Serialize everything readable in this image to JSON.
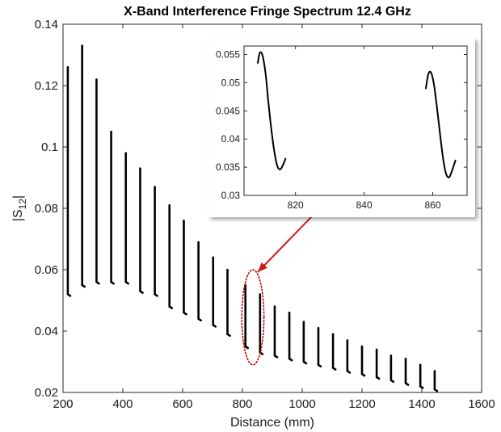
{
  "chart_data": [
    {
      "type": "line",
      "title": "X-Band Interference Fringe Spectrum 12.4 GHz",
      "xlabel": "Distance (mm)",
      "ylabel": {
        "main": "|S",
        "subscript": "12",
        "close": "|"
      },
      "xlim": [
        200,
        1600
      ],
      "ylim": [
        0.02,
        0.14
      ],
      "xticks": [
        200,
        400,
        600,
        800,
        1000,
        1200,
        1400,
        1600
      ],
      "yticks": [
        0.02,
        0.04,
        0.06,
        0.08,
        0.1,
        0.12,
        0.14
      ],
      "xtick_labels": [
        "200",
        "400",
        "600",
        "800",
        "1000",
        "1200",
        "1400",
        "1600"
      ],
      "ytick_labels": [
        "0.02",
        "0.04",
        "0.06",
        "0.08",
        "0.1",
        "0.12",
        "0.14"
      ],
      "grid": false,
      "series_color": "#000000",
      "fringe_segments": [
        {
          "x": 216,
          "y_max": 0.126,
          "y_min": 0.052
        },
        {
          "x": 264,
          "y_max": 0.133,
          "y_min": 0.055
        },
        {
          "x": 312,
          "y_max": 0.122,
          "y_min": 0.056
        },
        {
          "x": 361,
          "y_max": 0.105,
          "y_min": 0.056
        },
        {
          "x": 410,
          "y_max": 0.098,
          "y_min": 0.056
        },
        {
          "x": 458,
          "y_max": 0.093,
          "y_min": 0.053
        },
        {
          "x": 507,
          "y_max": 0.087,
          "y_min": 0.052
        },
        {
          "x": 556,
          "y_max": 0.081,
          "y_min": 0.048
        },
        {
          "x": 604,
          "y_max": 0.076,
          "y_min": 0.046
        },
        {
          "x": 653,
          "y_max": 0.069,
          "y_min": 0.044
        },
        {
          "x": 702,
          "y_max": 0.064,
          "y_min": 0.042
        },
        {
          "x": 750,
          "y_max": 0.06,
          "y_min": 0.039
        },
        {
          "x": 810,
          "y_max": 0.055,
          "y_min": 0.035
        },
        {
          "x": 859,
          "y_max": 0.052,
          "y_min": 0.033
        },
        {
          "x": 908,
          "y_max": 0.048,
          "y_min": 0.032
        },
        {
          "x": 957,
          "y_max": 0.046,
          "y_min": 0.031
        },
        {
          "x": 1005,
          "y_max": 0.043,
          "y_min": 0.03
        },
        {
          "x": 1054,
          "y_max": 0.041,
          "y_min": 0.029
        },
        {
          "x": 1103,
          "y_max": 0.039,
          "y_min": 0.028
        },
        {
          "x": 1151,
          "y_max": 0.037,
          "y_min": 0.027
        },
        {
          "x": 1200,
          "y_max": 0.035,
          "y_min": 0.026
        },
        {
          "x": 1249,
          "y_max": 0.034,
          "y_min": 0.025
        },
        {
          "x": 1297,
          "y_max": 0.032,
          "y_min": 0.024
        },
        {
          "x": 1346,
          "y_max": 0.031,
          "y_min": 0.023
        },
        {
          "x": 1395,
          "y_max": 0.029,
          "y_min": 0.022
        },
        {
          "x": 1443,
          "y_max": 0.027,
          "y_min": 0.021
        }
      ],
      "annotation": {
        "type": "ellipse",
        "x_center": 835,
        "y_center": 0.0445,
        "x_halfwidth": 37,
        "y_halfwidth": 0.0155,
        "color": "#c00000",
        "style": "dotted"
      },
      "arrow_color": "#d11a1a"
    },
    {
      "type": "line",
      "role": "inset",
      "xlim": [
        805,
        870
      ],
      "ylim": [
        0.03,
        0.0565
      ],
      "xticks": [
        820,
        840,
        860
      ],
      "yticks": [
        0.03,
        0.035,
        0.04,
        0.045,
        0.05,
        0.055
      ],
      "xtick_labels": [
        "820",
        "840",
        "860"
      ],
      "ytick_labels": [
        "0.03",
        "0.035",
        "0.04",
        "0.045",
        "0.05",
        "0.055"
      ],
      "grid": false,
      "series": [
        {
          "x": [
            809,
            809.6,
            810.4,
            811.3,
            812.1,
            813,
            813.9,
            814.7,
            815.5,
            816.2,
            817.1
          ],
          "y": [
            0.0535,
            0.0553,
            0.0548,
            0.0515,
            0.0465,
            0.0415,
            0.0375,
            0.0352,
            0.0346,
            0.0352,
            0.0365
          ]
        },
        {
          "x": [
            858,
            858.7,
            859.5,
            860.4,
            861.3,
            862.2,
            863.1,
            863.9,
            864.7,
            865.4,
            866.6
          ],
          "y": [
            0.049,
            0.0515,
            0.0518,
            0.0495,
            0.0452,
            0.0405,
            0.0362,
            0.0338,
            0.0332,
            0.034,
            0.0362
          ]
        }
      ]
    }
  ]
}
